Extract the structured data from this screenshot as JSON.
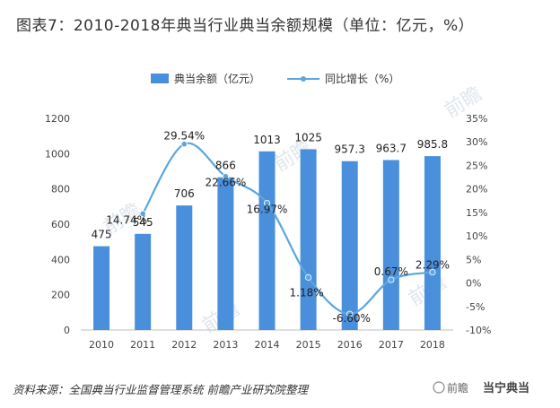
{
  "header": {
    "title": "图表7：2010-2018年典当行业典当余额规模（单位：亿元，%）"
  },
  "footer": {
    "source": "资料来源：全国典当行业监督管理系统  前瞻产业研究院整理"
  },
  "watermarks": {
    "logo": "前瞻",
    "brand": "当宁典当"
  },
  "chart_data": {
    "type": "bar",
    "categories": [
      "2010",
      "2011",
      "2012",
      "2013",
      "2014",
      "2015",
      "2016",
      "2017",
      "2018"
    ],
    "series": [
      {
        "name": "典当余额（亿元）",
        "type": "bar",
        "axis": "left",
        "values": [
          475,
          545,
          706,
          866,
          1013,
          1025,
          957.3,
          963.7,
          985.8
        ],
        "labels": [
          "475",
          "545",
          "706",
          "866",
          "1013",
          "1025",
          "957.3",
          "963.7",
          "985.8"
        ],
        "color": "#4a8fdc"
      },
      {
        "name": "同比增长（%）",
        "type": "line",
        "axis": "right",
        "x": [
          "2011",
          "2012",
          "2013",
          "2014",
          "2015",
          "2016",
          "2017",
          "2018"
        ],
        "values": [
          14.74,
          29.54,
          22.66,
          16.97,
          1.18,
          -6.6,
          0.67,
          2.29
        ],
        "labels": [
          "14.74%",
          "29.54%",
          "22.66%",
          "16.97%",
          "1.18%",
          "-6.60%",
          "0.67%",
          "2.29%"
        ],
        "color": "#5aa7e0"
      }
    ],
    "yleft": {
      "min": 0,
      "max": 1200,
      "step": 200,
      "ticks": [
        "0",
        "200",
        "400",
        "600",
        "800",
        "1000",
        "1200"
      ]
    },
    "yright": {
      "min": -10,
      "max": 35,
      "step": 5,
      "ticks": [
        "-10%",
        "-5%",
        "0%",
        "5%",
        "10%",
        "15%",
        "20%",
        "25%",
        "30%",
        "35%"
      ]
    },
    "legend": {
      "position": "top-center"
    },
    "grid": false
  }
}
